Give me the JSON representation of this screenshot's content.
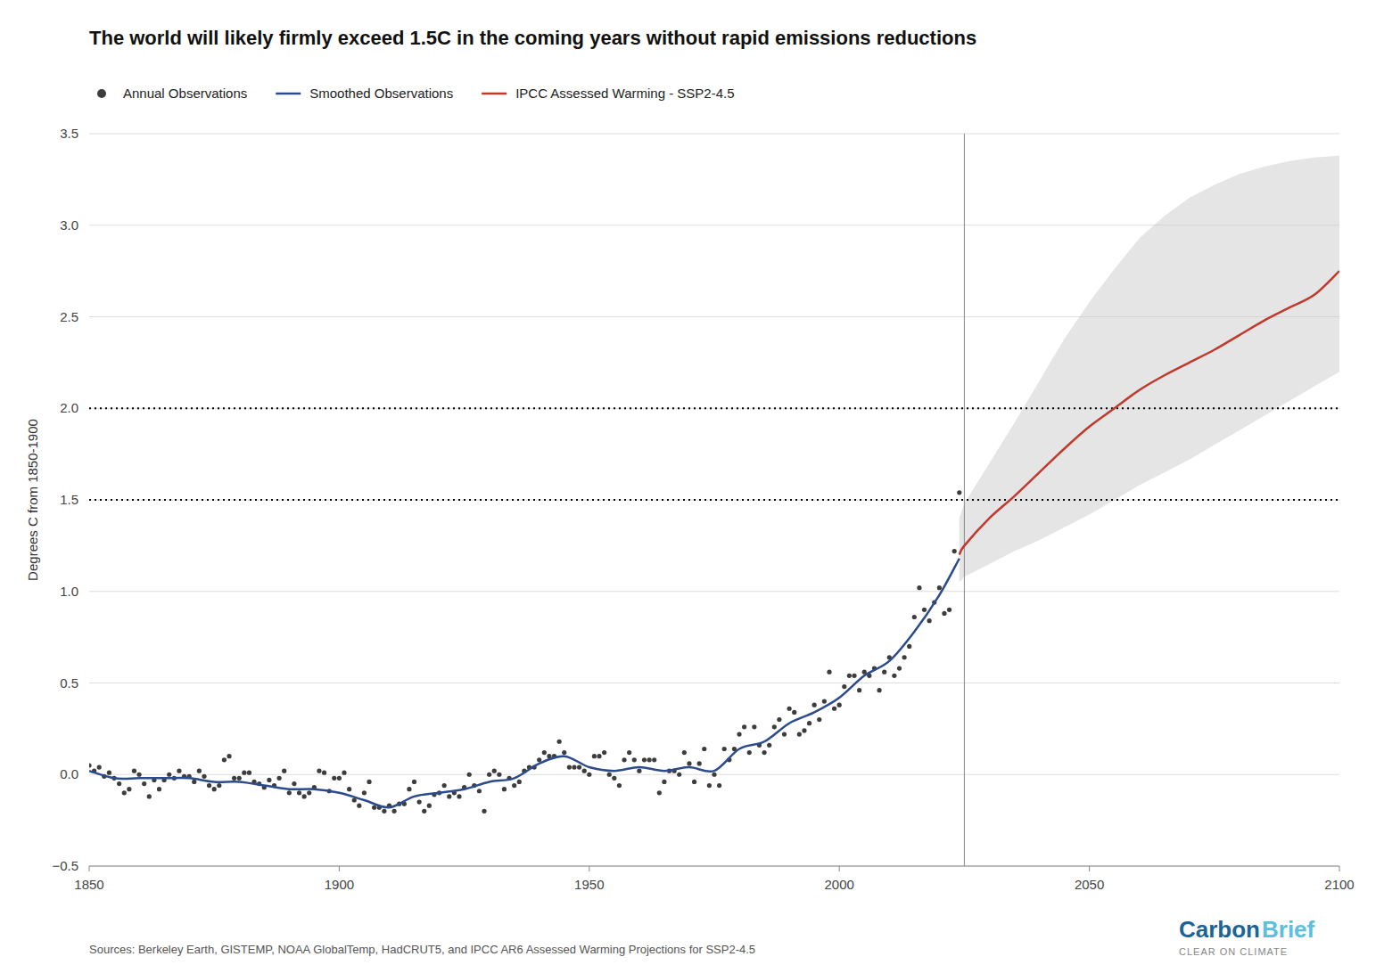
{
  "chart_data": {
    "type": "line",
    "title": "The world will likely firmly exceed 1.5C in the coming years without rapid emissions reductions",
    "y_label": "Degrees C from 1850-1900",
    "source": "Sources: Berkeley Earth, GISTEMP, NOAA GlobalTemp, HadCRUT5, and IPCC AR6 Assessed Warming Projections for SSP2-4.5",
    "annotations": [
      {
        "text": "Carbon",
        "color": "#1a6496"
      },
      {
        "text": "Brief",
        "color": "#5bc0de"
      },
      {
        "text": "CLEAR ON CLIMATE"
      }
    ],
    "xlim": [
      1850,
      2100
    ],
    "ylim": [
      -0.5,
      3.5
    ],
    "xticks": [
      1850,
      1900,
      1950,
      2000,
      2050,
      2100
    ],
    "yticks": [
      {
        "value": -0.5,
        "label": "−0.5"
      },
      {
        "value": 0,
        "label": "0.0"
      },
      0.5,
      {
        "value": 1,
        "label": "1.0"
      },
      1.5,
      {
        "value": 2,
        "label": "2.0"
      },
      2.5,
      {
        "value": 3,
        "label": "3.0"
      },
      3.5
    ],
    "grid": "y",
    "legend": "top",
    "hlines": [
      1.5,
      2.0
    ],
    "vlines": [
      2025
    ],
    "band": {
      "color": "#cccccc",
      "x": [
        2024,
        2025,
        2030,
        2035,
        2040,
        2045,
        2050,
        2055,
        2060,
        2065,
        2070,
        2075,
        2080,
        2085,
        2090,
        2095,
        2100
      ],
      "lower": [
        1.05,
        1.08,
        1.15,
        1.22,
        1.28,
        1.35,
        1.42,
        1.5,
        1.58,
        1.65,
        1.72,
        1.8,
        1.88,
        1.96,
        2.04,
        2.12,
        2.2
      ],
      "upper": [
        1.4,
        1.48,
        1.7,
        1.92,
        2.15,
        2.38,
        2.58,
        2.76,
        2.93,
        3.05,
        3.15,
        3.22,
        3.28,
        3.32,
        3.35,
        3.37,
        3.38
      ]
    },
    "series": [
      {
        "name": "Annual Observations",
        "type": "scatter",
        "marker": "circle",
        "color": "#3d3d3d",
        "x": [
          1850,
          1851,
          1852,
          1853,
          1854,
          1855,
          1856,
          1857,
          1858,
          1859,
          1860,
          1861,
          1862,
          1863,
          1864,
          1865,
          1866,
          1867,
          1868,
          1869,
          1870,
          1871,
          1872,
          1873,
          1874,
          1875,
          1876,
          1877,
          1878,
          1879,
          1880,
          1881,
          1882,
          1883,
          1884,
          1885,
          1886,
          1887,
          1888,
          1889,
          1890,
          1891,
          1892,
          1893,
          1894,
          1895,
          1896,
          1897,
          1898,
          1899,
          1900,
          1901,
          1902,
          1903,
          1904,
          1905,
          1906,
          1907,
          1908,
          1909,
          1910,
          1911,
          1912,
          1913,
          1914,
          1915,
          1916,
          1917,
          1918,
          1919,
          1920,
          1921,
          1922,
          1923,
          1924,
          1925,
          1926,
          1927,
          1928,
          1929,
          1930,
          1931,
          1932,
          1933,
          1934,
          1935,
          1936,
          1937,
          1938,
          1939,
          1940,
          1941,
          1942,
          1943,
          1944,
          1945,
          1946,
          1947,
          1948,
          1949,
          1950,
          1951,
          1952,
          1953,
          1954,
          1955,
          1956,
          1957,
          1958,
          1959,
          1960,
          1961,
          1962,
          1963,
          1964,
          1965,
          1966,
          1967,
          1968,
          1969,
          1970,
          1971,
          1972,
          1973,
          1974,
          1975,
          1976,
          1977,
          1978,
          1979,
          1980,
          1981,
          1982,
          1983,
          1984,
          1985,
          1986,
          1987,
          1988,
          1989,
          1990,
          1991,
          1992,
          1993,
          1994,
          1995,
          1996,
          1997,
          1998,
          1999,
          2000,
          2001,
          2002,
          2003,
          2004,
          2005,
          2006,
          2007,
          2008,
          2009,
          2010,
          2011,
          2012,
          2013,
          2014,
          2015,
          2016,
          2017,
          2018,
          2019,
          2020,
          2021,
          2022,
          2023,
          2024
        ],
        "values": [
          0.05,
          0.02,
          0.04,
          -0.01,
          0.01,
          -0.02,
          -0.05,
          -0.1,
          -0.08,
          0.02,
          0.0,
          -0.05,
          -0.12,
          -0.03,
          -0.08,
          -0.03,
          0.0,
          -0.02,
          0.02,
          -0.01,
          -0.01,
          -0.04,
          0.02,
          -0.01,
          -0.06,
          -0.08,
          -0.06,
          0.08,
          0.1,
          -0.02,
          -0.02,
          0.01,
          0.01,
          -0.04,
          -0.05,
          -0.07,
          -0.03,
          -0.06,
          -0.02,
          0.02,
          -0.1,
          -0.05,
          -0.1,
          -0.12,
          -0.1,
          -0.07,
          0.02,
          0.01,
          -0.09,
          -0.02,
          -0.02,
          0.01,
          -0.08,
          -0.14,
          -0.17,
          -0.1,
          -0.04,
          -0.18,
          -0.18,
          -0.2,
          -0.17,
          -0.2,
          -0.16,
          -0.16,
          -0.08,
          -0.04,
          -0.15,
          -0.2,
          -0.17,
          -0.11,
          -0.1,
          -0.06,
          -0.12,
          -0.1,
          -0.12,
          -0.07,
          0.0,
          -0.06,
          -0.09,
          -0.2,
          0.0,
          0.02,
          0.0,
          -0.08,
          -0.02,
          -0.06,
          -0.04,
          0.02,
          0.04,
          0.04,
          0.08,
          0.12,
          0.1,
          0.1,
          0.18,
          0.12,
          0.04,
          0.04,
          0.04,
          0.02,
          0.0,
          0.1,
          0.1,
          0.12,
          0.0,
          -0.02,
          -0.06,
          0.08,
          0.12,
          0.08,
          0.02,
          0.08,
          0.08,
          0.08,
          -0.1,
          -0.04,
          0.02,
          0.02,
          0.0,
          0.12,
          0.06,
          -0.04,
          0.06,
          0.14,
          -0.06,
          0.0,
          -0.06,
          0.14,
          0.08,
          0.14,
          0.22,
          0.26,
          0.12,
          0.26,
          0.16,
          0.12,
          0.16,
          0.26,
          0.3,
          0.22,
          0.36,
          0.34,
          0.22,
          0.24,
          0.28,
          0.38,
          0.3,
          0.4,
          0.56,
          0.36,
          0.38,
          0.48,
          0.54,
          0.54,
          0.46,
          0.56,
          0.54,
          0.58,
          0.46,
          0.56,
          0.64,
          0.54,
          0.58,
          0.64,
          0.7,
          0.86,
          1.02,
          0.9,
          0.84,
          0.94,
          1.02,
          0.88,
          0.9,
          1.22,
          1.54
        ]
      },
      {
        "name": "Smoothed Observations",
        "type": "line",
        "color": "#2B4B8E",
        "x": [
          1850,
          1855,
          1860,
          1865,
          1870,
          1875,
          1880,
          1885,
          1890,
          1895,
          1900,
          1905,
          1910,
          1915,
          1920,
          1925,
          1930,
          1935,
          1940,
          1945,
          1950,
          1955,
          1960,
          1965,
          1970,
          1975,
          1980,
          1985,
          1990,
          1995,
          2000,
          2005,
          2010,
          2015,
          2020,
          2024
        ],
        "values": [
          0.02,
          -0.02,
          -0.02,
          -0.02,
          -0.02,
          -0.04,
          -0.04,
          -0.06,
          -0.08,
          -0.08,
          -0.1,
          -0.14,
          -0.18,
          -0.12,
          -0.1,
          -0.08,
          -0.04,
          -0.02,
          0.06,
          0.1,
          0.04,
          0.02,
          0.04,
          0.02,
          0.04,
          0.02,
          0.14,
          0.18,
          0.28,
          0.34,
          0.42,
          0.54,
          0.62,
          0.78,
          0.98,
          1.18
        ]
      },
      {
        "name": "IPCC Assessed Warming - SSP2-4.5",
        "type": "line",
        "color": "#C0392B",
        "x": [
          2024,
          2025,
          2030,
          2035,
          2040,
          2045,
          2050,
          2055,
          2060,
          2065,
          2070,
          2075,
          2080,
          2085,
          2090,
          2095,
          2100
        ],
        "values": [
          1.2,
          1.25,
          1.4,
          1.52,
          1.65,
          1.78,
          1.9,
          2.0,
          2.1,
          2.18,
          2.25,
          2.32,
          2.4,
          2.48,
          2.55,
          2.62,
          2.75
        ]
      }
    ]
  }
}
